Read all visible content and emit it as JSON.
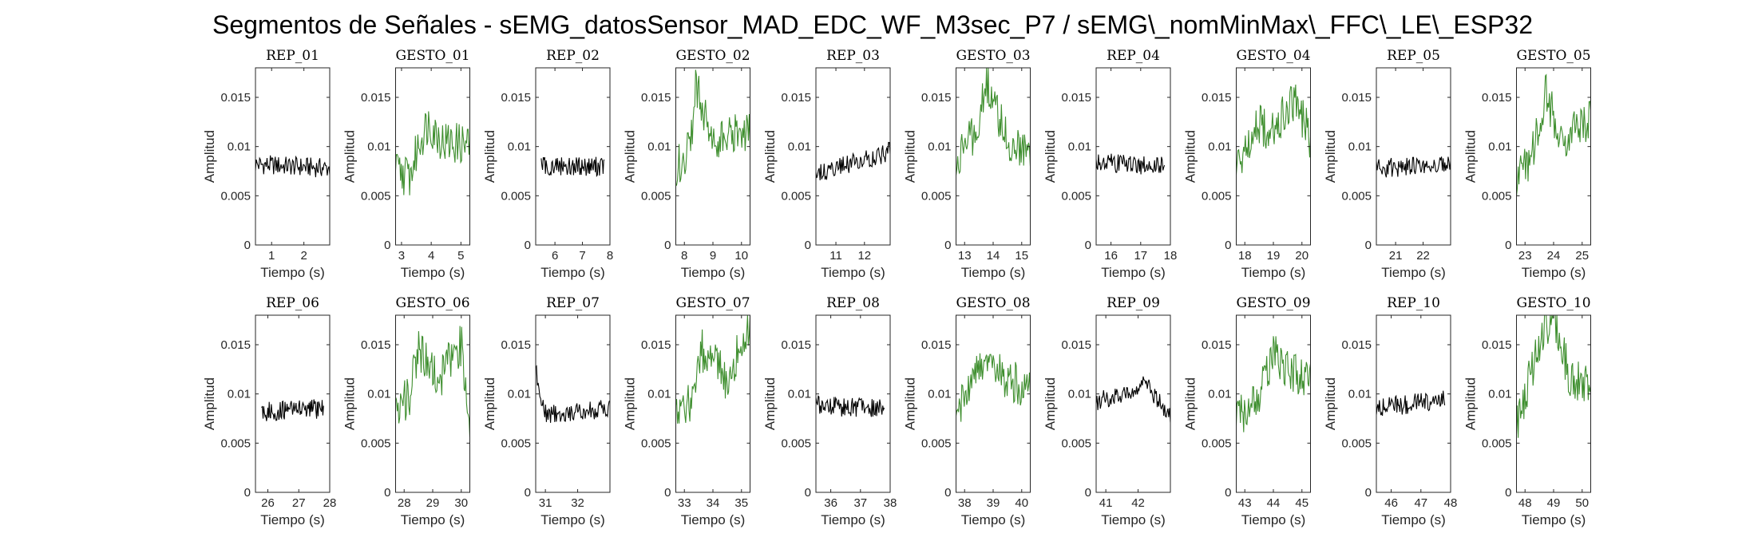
{
  "figure": {
    "title": "Segmentos de Señales - sEMG_datosSensor_MAD_EDC_WF_M3sec_P7 / sEMG\\_nomMinMax\\_FFC\\_LE\\_ESP32"
  },
  "colors": {
    "rep": "#000000",
    "gesto": "#3f8f2f",
    "axis": "#262626"
  },
  "chart_data": [
    {
      "type": "line",
      "title": "REP_01",
      "xlabel": "Tiempo (s)",
      "ylabel": "Amplitud",
      "xlim": [
        0.5,
        2.8
      ],
      "xticks": [
        1,
        2
      ],
      "ylim": [
        0,
        0.018
      ],
      "yticks": [
        0,
        0.005,
        0.01,
        0.015
      ],
      "grid": false,
      "series": [
        {
          "kind": "rep",
          "x": [
            0.5,
            2.8
          ],
          "y": [
            0.0082,
            0.0078
          ]
        }
      ]
    },
    {
      "type": "line",
      "title": "GESTO_01",
      "xlabel": "Tiempo (s)",
      "ylabel": "Amplitud",
      "xlim": [
        2.8,
        5.3
      ],
      "xticks": [
        3,
        4,
        5
      ],
      "ylim": [
        0,
        0.018
      ],
      "yticks": [
        0,
        0.005,
        0.01,
        0.015
      ],
      "grid": false,
      "series": [
        {
          "kind": "gesto",
          "x": [
            2.8,
            3.3,
            3.6,
            3.9,
            4.4,
            5.3
          ],
          "y": [
            0.0075,
            0.007,
            0.0105,
            0.0125,
            0.0105,
            0.0102
          ]
        }
      ]
    },
    {
      "type": "line",
      "title": "REP_02",
      "xlabel": "Tiempo (s)",
      "ylabel": "Amplitud",
      "xlim": [
        5.3,
        8.0
      ],
      "xticks": [
        6,
        7,
        8
      ],
      "ylim": [
        0,
        0.018
      ],
      "yticks": [
        0,
        0.005,
        0.01,
        0.015
      ],
      "grid": false,
      "series": [
        {
          "kind": "rep",
          "x": [
            5.5,
            7.8
          ],
          "y": [
            0.008,
            0.008
          ]
        }
      ]
    },
    {
      "type": "line",
      "title": "GESTO_02",
      "xlabel": "Tiempo (s)",
      "ylabel": "Amplitud",
      "xlim": [
        7.7,
        10.3
      ],
      "xticks": [
        8,
        9,
        10
      ],
      "ylim": [
        0,
        0.018
      ],
      "yticks": [
        0,
        0.005,
        0.01,
        0.015
      ],
      "grid": false,
      "series": [
        {
          "kind": "gesto",
          "x": [
            7.7,
            8.2,
            8.4,
            9.0,
            10.3
          ],
          "y": [
            0.008,
            0.0095,
            0.0165,
            0.0105,
            0.0115
          ]
        }
      ]
    },
    {
      "type": "line",
      "title": "REP_03",
      "xlabel": "Tiempo (s)",
      "ylabel": "Amplitud",
      "xlim": [
        10.3,
        12.9
      ],
      "xticks": [
        11,
        12
      ],
      "ylim": [
        0,
        0.018
      ],
      "yticks": [
        0,
        0.005,
        0.01,
        0.015
      ],
      "grid": false,
      "series": [
        {
          "kind": "rep",
          "x": [
            10.3,
            12.9
          ],
          "y": [
            0.0072,
            0.0095
          ]
        }
      ]
    },
    {
      "type": "line",
      "title": "GESTO_03",
      "xlabel": "Tiempo (s)",
      "ylabel": "Amplitud",
      "xlim": [
        12.7,
        15.3
      ],
      "xticks": [
        13,
        14,
        15
      ],
      "ylim": [
        0,
        0.018
      ],
      "yticks": [
        0,
        0.005,
        0.01,
        0.015
      ],
      "grid": false,
      "series": [
        {
          "kind": "gesto",
          "x": [
            12.7,
            13.4,
            13.8,
            14.5,
            15.3
          ],
          "y": [
            0.0085,
            0.0115,
            0.0165,
            0.0105,
            0.0098
          ]
        }
      ]
    },
    {
      "type": "line",
      "title": "REP_04",
      "xlabel": "Tiempo (s)",
      "ylabel": "Amplitud",
      "xlim": [
        15.5,
        18.0
      ],
      "xticks": [
        16,
        17,
        18
      ],
      "ylim": [
        0,
        0.018
      ],
      "yticks": [
        0,
        0.005,
        0.01,
        0.015
      ],
      "grid": false,
      "series": [
        {
          "kind": "rep",
          "x": [
            15.5,
            17.8
          ],
          "y": [
            0.0085,
            0.008
          ]
        }
      ]
    },
    {
      "type": "line",
      "title": "GESTO_04",
      "xlabel": "Tiempo (s)",
      "ylabel": "Amplitud",
      "xlim": [
        17.7,
        20.3
      ],
      "xticks": [
        18,
        19,
        20
      ],
      "ylim": [
        0,
        0.018
      ],
      "yticks": [
        0,
        0.005,
        0.01,
        0.015
      ],
      "grid": false,
      "series": [
        {
          "kind": "gesto",
          "x": [
            17.7,
            18.4,
            19.0,
            19.8,
            20.3
          ],
          "y": [
            0.008,
            0.0125,
            0.0115,
            0.015,
            0.0105
          ]
        }
      ]
    },
    {
      "type": "line",
      "title": "REP_05",
      "xlabel": "Tiempo (s)",
      "ylabel": "Amplitud",
      "xlim": [
        20.3,
        23.0
      ],
      "xticks": [
        21,
        22
      ],
      "ylim": [
        0,
        0.018
      ],
      "yticks": [
        0,
        0.005,
        0.01,
        0.015
      ],
      "grid": false,
      "series": [
        {
          "kind": "rep",
          "x": [
            20.3,
            23.0
          ],
          "y": [
            0.0078,
            0.0082
          ]
        }
      ]
    },
    {
      "type": "line",
      "title": "GESTO_05",
      "xlabel": "Tiempo (s)",
      "ylabel": "Amplitud",
      "xlim": [
        22.7,
        25.3
      ],
      "xticks": [
        23,
        24,
        25
      ],
      "ylim": [
        0,
        0.018
      ],
      "yticks": [
        0,
        0.005,
        0.01,
        0.015
      ],
      "grid": false,
      "series": [
        {
          "kind": "gesto",
          "x": [
            22.7,
            23.3,
            23.7,
            24.3,
            25.3
          ],
          "y": [
            0.0065,
            0.0095,
            0.0155,
            0.011,
            0.0125
          ]
        }
      ]
    },
    {
      "type": "line",
      "title": "REP_06",
      "xlabel": "Tiempo (s)",
      "ylabel": "Amplitud",
      "xlim": [
        25.6,
        28.0
      ],
      "xticks": [
        26,
        27,
        28
      ],
      "ylim": [
        0,
        0.018
      ],
      "yticks": [
        0,
        0.005,
        0.01,
        0.015
      ],
      "grid": false,
      "series": [
        {
          "kind": "rep",
          "x": [
            25.8,
            27.8
          ],
          "y": [
            0.0082,
            0.0085
          ]
        }
      ]
    },
    {
      "type": "line",
      "title": "GESTO_06",
      "xlabel": "Tiempo (s)",
      "ylabel": "Amplitud",
      "xlim": [
        27.7,
        30.3
      ],
      "xticks": [
        28,
        29,
        30
      ],
      "ylim": [
        0,
        0.018
      ],
      "yticks": [
        0,
        0.005,
        0.01,
        0.015
      ],
      "grid": false,
      "series": [
        {
          "kind": "gesto",
          "x": [
            27.7,
            28.2,
            28.5,
            29.2,
            30.0,
            30.3
          ],
          "y": [
            0.008,
            0.01,
            0.0145,
            0.0115,
            0.015,
            0.0075
          ]
        }
      ]
    },
    {
      "type": "line",
      "title": "REP_07",
      "xlabel": "Tiempo (s)",
      "ylabel": "Amplitud",
      "xlim": [
        30.7,
        33.0
      ],
      "xticks": [
        31,
        32
      ],
      "ylim": [
        0,
        0.018
      ],
      "yticks": [
        0,
        0.005,
        0.01,
        0.015
      ],
      "grid": false,
      "series": [
        {
          "kind": "rep",
          "x": [
            30.7,
            31.0,
            33.0
          ],
          "y": [
            0.0125,
            0.008,
            0.0085
          ]
        }
      ]
    },
    {
      "type": "line",
      "title": "GESTO_07",
      "xlabel": "Tiempo (s)",
      "ylabel": "Amplitud",
      "xlim": [
        32.7,
        35.3
      ],
      "xticks": [
        33,
        34,
        35
      ],
      "ylim": [
        0,
        0.018
      ],
      "yticks": [
        0,
        0.005,
        0.01,
        0.015
      ],
      "grid": false,
      "series": [
        {
          "kind": "gesto",
          "x": [
            32.7,
            33.3,
            33.6,
            34.5,
            35.3
          ],
          "y": [
            0.008,
            0.0095,
            0.0145,
            0.0115,
            0.0175
          ]
        }
      ]
    },
    {
      "type": "line",
      "title": "REP_08",
      "xlabel": "Tiempo (s)",
      "ylabel": "Amplitud",
      "xlim": [
        35.5,
        38.0
      ],
      "xticks": [
        36,
        37,
        38
      ],
      "ylim": [
        0,
        0.018
      ],
      "yticks": [
        0,
        0.005,
        0.01,
        0.015
      ],
      "grid": false,
      "series": [
        {
          "kind": "rep",
          "x": [
            35.5,
            37.8
          ],
          "y": [
            0.0088,
            0.0085
          ]
        }
      ]
    },
    {
      "type": "line",
      "title": "GESTO_08",
      "xlabel": "Tiempo (s)",
      "ylabel": "Amplitud",
      "xlim": [
        37.7,
        40.3
      ],
      "xticks": [
        38,
        39,
        40
      ],
      "ylim": [
        0,
        0.018
      ],
      "yticks": [
        0,
        0.005,
        0.01,
        0.015
      ],
      "grid": false,
      "series": [
        {
          "kind": "gesto",
          "x": [
            37.7,
            38.4,
            38.8,
            39.5,
            40.3
          ],
          "y": [
            0.0085,
            0.012,
            0.014,
            0.0115,
            0.0105
          ]
        }
      ]
    },
    {
      "type": "line",
      "title": "REP_09",
      "xlabel": "Tiempo (s)",
      "ylabel": "Amplitud",
      "xlim": [
        40.7,
        43.0
      ],
      "xticks": [
        41,
        42
      ],
      "ylim": [
        0,
        0.018
      ],
      "yticks": [
        0,
        0.005,
        0.01,
        0.015
      ],
      "grid": false,
      "series": [
        {
          "kind": "rep",
          "x": [
            40.7,
            42.3,
            43.0
          ],
          "y": [
            0.0092,
            0.011,
            0.0075
          ]
        }
      ]
    },
    {
      "type": "line",
      "title": "GESTO_09",
      "xlabel": "Tiempo (s)",
      "ylabel": "Amplitud",
      "xlim": [
        42.7,
        45.3
      ],
      "xticks": [
        43,
        44,
        45
      ],
      "ylim": [
        0,
        0.018
      ],
      "yticks": [
        0,
        0.005,
        0.01,
        0.015
      ],
      "grid": false,
      "series": [
        {
          "kind": "gesto",
          "x": [
            42.7,
            43.5,
            44.0,
            44.6,
            45.3
          ],
          "y": [
            0.0075,
            0.01,
            0.014,
            0.0125,
            0.0115
          ]
        }
      ]
    },
    {
      "type": "line",
      "title": "REP_10",
      "xlabel": "Tiempo (s)",
      "ylabel": "Amplitud",
      "xlim": [
        45.5,
        48.0
      ],
      "xticks": [
        46,
        47,
        48
      ],
      "ylim": [
        0,
        0.018
      ],
      "yticks": [
        0,
        0.005,
        0.01,
        0.015
      ],
      "grid": false,
      "series": [
        {
          "kind": "rep",
          "x": [
            45.5,
            47.8
          ],
          "y": [
            0.0085,
            0.0095
          ]
        }
      ]
    },
    {
      "type": "line",
      "title": "GESTO_10",
      "xlabel": "Tiempo (s)",
      "ylabel": "Amplitud",
      "xlim": [
        47.7,
        50.3
      ],
      "xticks": [
        48,
        49,
        50
      ],
      "ylim": [
        0,
        0.018
      ],
      "yticks": [
        0,
        0.005,
        0.01,
        0.015
      ],
      "grid": false,
      "series": [
        {
          "kind": "gesto",
          "x": [
            47.7,
            48.2,
            48.6,
            49.0,
            49.6,
            50.3
          ],
          "y": [
            0.007,
            0.012,
            0.0165,
            0.018,
            0.0115,
            0.0105
          ]
        }
      ]
    }
  ]
}
